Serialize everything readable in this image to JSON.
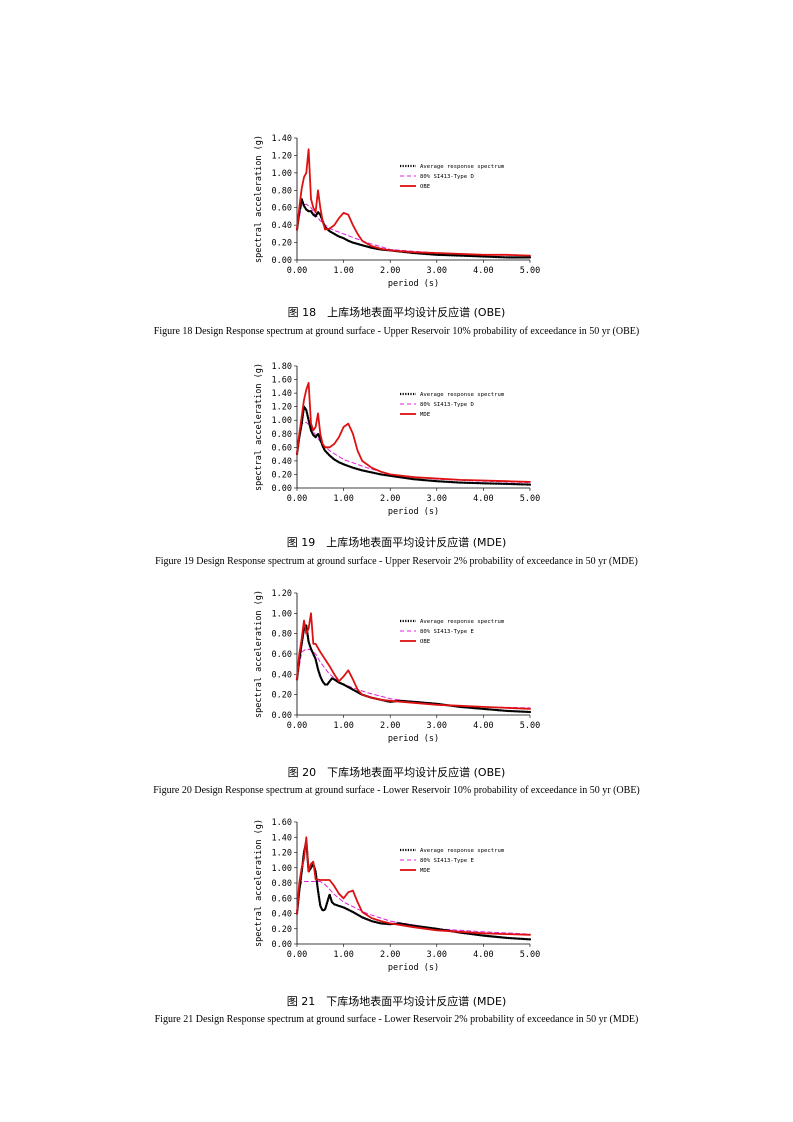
{
  "colors": {
    "average": "#000000",
    "code": "#e020e0",
    "design": "#dd1111"
  },
  "figures": [
    {
      "caption_cn": "图 18　上库场地表面平均设计反应谱 (OBE)",
      "caption_en": "Figure 18 Design Response spectrum at ground surface - Upper Reservoir 10% probability of exceedance in 50 yr (OBE)"
    },
    {
      "caption_cn": "图 19　上库场地表面平均设计反应谱 (MDE)",
      "caption_en": "Figure 19 Design Response spectrum at ground surface - Upper Reservoir 2% probability of exceedance in 50 yr (MDE)"
    },
    {
      "caption_cn": "图 20　下库场地表面平均设计反应谱 (OBE)",
      "caption_en": "Figure 20 Design Response spectrum at ground surface - Lower Reservoir 10% probability of exceedance in 50 yr (OBE)"
    },
    {
      "caption_cn": "图 21　下库场地表面平均设计反应谱 (MDE)",
      "caption_en": "Figure 21 Design Response spectrum at ground surface - Lower Reservoir 2% probability of exceedance in 50 yr (MDE)"
    }
  ],
  "chart_data": [
    {
      "type": "line",
      "xlabel": "period (s)",
      "ylabel": "spectral acceleration (g)",
      "xlim": [
        0,
        5
      ],
      "ylim": [
        0,
        1.4
      ],
      "xticks": [
        "0.00",
        "1.00",
        "2.00",
        "3.00",
        "4.00",
        "5.00"
      ],
      "yticks": [
        "0.00",
        "0.20",
        "0.40",
        "0.60",
        "0.80",
        "1.00",
        "1.20",
        "1.40"
      ],
      "legend_position": "top-right",
      "series": [
        {
          "name": "Average response spectrum",
          "style": "dotted",
          "x": [
            0,
            0.05,
            0.1,
            0.15,
            0.2,
            0.25,
            0.3,
            0.35,
            0.4,
            0.45,
            0.5,
            0.55,
            0.6,
            0.7,
            0.8,
            0.9,
            1.0,
            1.1,
            1.2,
            1.4,
            1.6,
            1.8,
            2.0,
            2.5,
            3.0,
            3.5,
            4.0,
            4.5,
            5.0
          ],
          "y": [
            0.35,
            0.55,
            0.7,
            0.62,
            0.58,
            0.56,
            0.56,
            0.52,
            0.5,
            0.55,
            0.52,
            0.45,
            0.38,
            0.33,
            0.3,
            0.27,
            0.25,
            0.22,
            0.2,
            0.17,
            0.14,
            0.12,
            0.11,
            0.08,
            0.06,
            0.05,
            0.04,
            0.03,
            0.03
          ]
        },
        {
          "name": "80% SI413-Type D",
          "style": "dashed",
          "x": [
            0,
            0.1,
            0.2,
            0.3,
            0.4,
            0.5,
            0.7,
            1.0,
            1.5,
            2.0,
            3.0,
            4.0,
            5.0
          ],
          "y": [
            0.35,
            0.63,
            0.64,
            0.6,
            0.52,
            0.45,
            0.36,
            0.3,
            0.2,
            0.12,
            0.08,
            0.06,
            0.05
          ]
        },
        {
          "name": "OBE",
          "style": "solid",
          "x": [
            0,
            0.05,
            0.1,
            0.15,
            0.2,
            0.25,
            0.3,
            0.35,
            0.4,
            0.45,
            0.5,
            0.55,
            0.6,
            0.7,
            0.8,
            0.9,
            1.0,
            1.1,
            1.2,
            1.3,
            1.4,
            1.6,
            1.8,
            2.0,
            2.5,
            3.0,
            3.5,
            4.0,
            4.5,
            5.0
          ],
          "y": [
            0.35,
            0.6,
            0.82,
            0.95,
            1.0,
            1.27,
            0.7,
            0.6,
            0.55,
            0.8,
            0.6,
            0.45,
            0.35,
            0.36,
            0.4,
            0.48,
            0.54,
            0.52,
            0.4,
            0.3,
            0.22,
            0.16,
            0.13,
            0.11,
            0.09,
            0.08,
            0.07,
            0.06,
            0.06,
            0.05
          ]
        }
      ]
    },
    {
      "type": "line",
      "xlabel": "period (s)",
      "ylabel": "spectral acceleration (g)",
      "xlim": [
        0,
        5
      ],
      "ylim": [
        0,
        1.8
      ],
      "xticks": [
        "0.00",
        "1.00",
        "2.00",
        "3.00",
        "4.00",
        "5.00"
      ],
      "yticks": [
        "0.00",
        "0.20",
        "0.40",
        "0.60",
        "0.80",
        "1.00",
        "1.20",
        "1.40",
        "1.60",
        "1.80"
      ],
      "legend_position": "top-right",
      "series": [
        {
          "name": "Average response spectrum",
          "style": "dotted",
          "x": [
            0,
            0.05,
            0.1,
            0.15,
            0.2,
            0.25,
            0.3,
            0.35,
            0.4,
            0.45,
            0.5,
            0.55,
            0.6,
            0.7,
            0.8,
            0.9,
            1.0,
            1.2,
            1.4,
            1.6,
            1.8,
            2.0,
            2.5,
            3.0,
            3.5,
            4.0,
            4.5,
            5.0
          ],
          "y": [
            0.5,
            0.75,
            0.95,
            1.2,
            1.15,
            1.0,
            0.85,
            0.78,
            0.75,
            0.8,
            0.72,
            0.62,
            0.55,
            0.48,
            0.42,
            0.38,
            0.35,
            0.3,
            0.26,
            0.23,
            0.2,
            0.18,
            0.13,
            0.1,
            0.08,
            0.07,
            0.06,
            0.05
          ]
        },
        {
          "name": "80% SI413-Type D",
          "style": "dashed",
          "x": [
            0,
            0.1,
            0.2,
            0.3,
            0.4,
            0.5,
            0.7,
            1.0,
            1.5,
            2.0,
            3.0,
            4.0,
            5.0
          ],
          "y": [
            0.5,
            0.95,
            0.97,
            0.9,
            0.78,
            0.68,
            0.55,
            0.42,
            0.3,
            0.2,
            0.13,
            0.1,
            0.08
          ]
        },
        {
          "name": "MDE",
          "style": "solid",
          "x": [
            0,
            0.05,
            0.1,
            0.15,
            0.2,
            0.25,
            0.3,
            0.35,
            0.4,
            0.45,
            0.5,
            0.55,
            0.6,
            0.7,
            0.8,
            0.9,
            1.0,
            1.1,
            1.2,
            1.3,
            1.4,
            1.6,
            1.8,
            2.0,
            2.5,
            3.0,
            3.5,
            4.0,
            4.5,
            5.0
          ],
          "y": [
            0.5,
            0.8,
            1.05,
            1.3,
            1.45,
            1.55,
            0.95,
            0.85,
            0.9,
            1.1,
            0.8,
            0.65,
            0.6,
            0.6,
            0.65,
            0.75,
            0.9,
            0.95,
            0.8,
            0.55,
            0.4,
            0.3,
            0.24,
            0.2,
            0.16,
            0.14,
            0.12,
            0.11,
            0.1,
            0.09
          ]
        }
      ]
    },
    {
      "type": "line",
      "xlabel": "period (s)",
      "ylabel": "spectral acceleration (g)",
      "xlim": [
        0,
        5
      ],
      "ylim": [
        0,
        1.2
      ],
      "xticks": [
        "0.00",
        "1.00",
        "2.00",
        "3.00",
        "4.00",
        "5.00"
      ],
      "yticks": [
        "0.00",
        "0.20",
        "0.40",
        "0.60",
        "0.80",
        "1.00",
        "1.20"
      ],
      "legend_position": "top-right",
      "series": [
        {
          "name": "Average response spectrum",
          "style": "dotted",
          "x": [
            0,
            0.05,
            0.1,
            0.15,
            0.2,
            0.25,
            0.3,
            0.35,
            0.4,
            0.45,
            0.5,
            0.55,
            0.6,
            0.65,
            0.7,
            0.75,
            0.8,
            0.9,
            1.0,
            1.2,
            1.4,
            1.6,
            1.8,
            2.0,
            2.2,
            2.5,
            3.0,
            3.5,
            4.0,
            4.5,
            5.0
          ],
          "y": [
            0.35,
            0.55,
            0.7,
            0.85,
            0.88,
            0.72,
            0.65,
            0.6,
            0.55,
            0.45,
            0.38,
            0.33,
            0.3,
            0.3,
            0.33,
            0.36,
            0.35,
            0.32,
            0.3,
            0.25,
            0.2,
            0.17,
            0.15,
            0.13,
            0.14,
            0.13,
            0.11,
            0.08,
            0.06,
            0.04,
            0.03
          ]
        },
        {
          "name": "80% SI413-Type E",
          "style": "dashed",
          "x": [
            0,
            0.1,
            0.2,
            0.3,
            0.4,
            0.5,
            0.7,
            1.0,
            1.5,
            2.0,
            3.0,
            4.0,
            5.0
          ],
          "y": [
            0.35,
            0.62,
            0.65,
            0.64,
            0.6,
            0.52,
            0.4,
            0.3,
            0.22,
            0.16,
            0.1,
            0.08,
            0.07
          ]
        },
        {
          "name": "OBE",
          "style": "solid",
          "x": [
            0,
            0.05,
            0.1,
            0.15,
            0.2,
            0.25,
            0.3,
            0.35,
            0.4,
            0.5,
            0.6,
            0.7,
            0.8,
            0.9,
            1.0,
            1.1,
            1.2,
            1.3,
            1.4,
            1.6,
            1.8,
            2.0,
            2.5,
            3.0,
            3.5,
            4.0,
            4.5,
            5.0
          ],
          "y": [
            0.35,
            0.6,
            0.75,
            0.93,
            0.8,
            0.85,
            1.0,
            0.7,
            0.7,
            0.62,
            0.55,
            0.48,
            0.4,
            0.33,
            0.38,
            0.44,
            0.35,
            0.25,
            0.2,
            0.17,
            0.15,
            0.14,
            0.12,
            0.1,
            0.09,
            0.08,
            0.07,
            0.06
          ]
        }
      ]
    },
    {
      "type": "line",
      "xlabel": "period (s)",
      "ylabel": "spectral acceleration (g)",
      "xlim": [
        0,
        5
      ],
      "ylim": [
        0,
        1.6
      ],
      "xticks": [
        "0.00",
        "1.00",
        "2.00",
        "3.00",
        "4.00",
        "5.00"
      ],
      "yticks": [
        "0.00",
        "0.20",
        "0.40",
        "0.60",
        "0.80",
        "1.00",
        "1.20",
        "1.40",
        "1.60"
      ],
      "legend_position": "top-right",
      "series": [
        {
          "name": "Average response spectrum",
          "style": "dotted",
          "x": [
            0,
            0.05,
            0.1,
            0.15,
            0.2,
            0.25,
            0.3,
            0.35,
            0.4,
            0.45,
            0.5,
            0.55,
            0.6,
            0.65,
            0.7,
            0.75,
            0.8,
            0.9,
            1.0,
            1.2,
            1.4,
            1.6,
            1.8,
            2.0,
            2.2,
            2.5,
            3.0,
            3.5,
            4.0,
            4.5,
            5.0
          ],
          "y": [
            0.4,
            0.7,
            0.95,
            1.2,
            1.35,
            0.95,
            1.0,
            1.05,
            0.95,
            0.7,
            0.5,
            0.44,
            0.45,
            0.55,
            0.65,
            0.55,
            0.52,
            0.5,
            0.48,
            0.42,
            0.35,
            0.3,
            0.27,
            0.26,
            0.27,
            0.24,
            0.2,
            0.15,
            0.11,
            0.08,
            0.06
          ]
        },
        {
          "name": "80% SI413-Type E",
          "style": "dashed",
          "x": [
            0,
            0.05,
            0.1,
            0.2,
            0.3,
            0.4,
            0.5,
            0.6,
            0.8,
            1.0,
            1.5,
            2.0,
            3.0,
            4.0,
            5.0
          ],
          "y": [
            0.4,
            0.7,
            0.82,
            0.82,
            0.82,
            0.82,
            0.82,
            0.78,
            0.65,
            0.55,
            0.4,
            0.3,
            0.2,
            0.16,
            0.13
          ]
        },
        {
          "name": "MDE",
          "style": "solid",
          "x": [
            0,
            0.05,
            0.1,
            0.15,
            0.2,
            0.25,
            0.3,
            0.35,
            0.4,
            0.5,
            0.6,
            0.7,
            0.8,
            0.9,
            1.0,
            1.1,
            1.2,
            1.3,
            1.4,
            1.6,
            1.8,
            2.0,
            2.5,
            3.0,
            3.5,
            4.0,
            4.5,
            5.0
          ],
          "y": [
            0.4,
            0.8,
            1.0,
            1.12,
            1.4,
            0.95,
            1.05,
            1.08,
            0.85,
            0.84,
            0.84,
            0.84,
            0.76,
            0.66,
            0.6,
            0.68,
            0.7,
            0.55,
            0.42,
            0.34,
            0.3,
            0.27,
            0.22,
            0.18,
            0.16,
            0.14,
            0.13,
            0.12
          ]
        }
      ]
    }
  ]
}
